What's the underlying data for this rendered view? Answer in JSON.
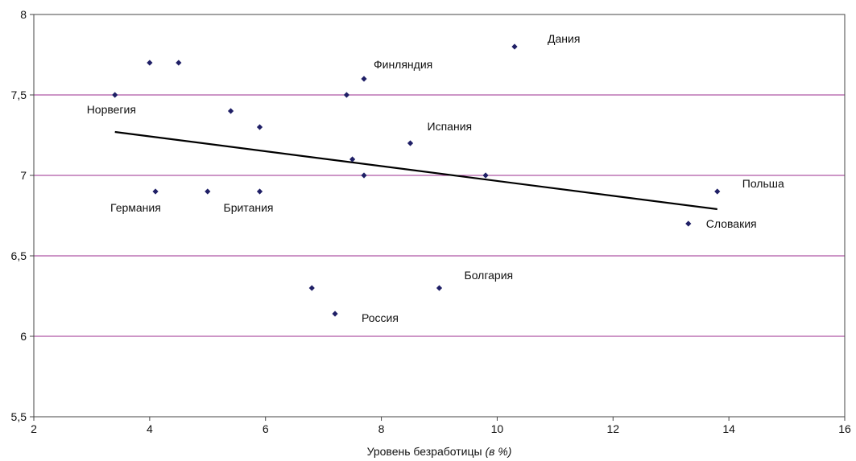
{
  "chart_data": {
    "type": "scatter",
    "xlabel": "Уровень безработицы",
    "xlabel_suffix": "(в %)",
    "xlim": [
      2,
      16
    ],
    "ylim": [
      5.5,
      8
    ],
    "x_ticks": [
      "2",
      "4",
      "6",
      "8",
      "10",
      "12",
      "14",
      "16"
    ],
    "y_ticks": [
      "5,5",
      "6",
      "6,5",
      "7",
      "7,5",
      "8"
    ],
    "gridlines": "horizontal",
    "colors": {
      "marker": "#1f1f66",
      "grid": "#9b2d8f",
      "trend": "#000000",
      "axis": "#444444"
    },
    "points": [
      {
        "x": 3.4,
        "y": 7.5,
        "label": "Норвегия"
      },
      {
        "x": 4.0,
        "y": 7.7,
        "label": ""
      },
      {
        "x": 4.5,
        "y": 7.7,
        "label": ""
      },
      {
        "x": 4.1,
        "y": 6.9,
        "label": "Германия"
      },
      {
        "x": 5.0,
        "y": 6.9,
        "label": ""
      },
      {
        "x": 5.4,
        "y": 7.4,
        "label": ""
      },
      {
        "x": 5.9,
        "y": 7.3,
        "label": ""
      },
      {
        "x": 5.9,
        "y": 6.9,
        "label": "Британия"
      },
      {
        "x": 6.8,
        "y": 6.3,
        "label": ""
      },
      {
        "x": 7.2,
        "y": 6.14,
        "label": "Россия"
      },
      {
        "x": 7.4,
        "y": 7.5,
        "label": ""
      },
      {
        "x": 7.5,
        "y": 7.1,
        "label": ""
      },
      {
        "x": 7.7,
        "y": 7.6,
        "label": "Финляндия"
      },
      {
        "x": 7.7,
        "y": 7.0,
        "label": ""
      },
      {
        "x": 8.5,
        "y": 7.2,
        "label": "Испания"
      },
      {
        "x": 9.0,
        "y": 6.3,
        "label": "Болгария"
      },
      {
        "x": 9.8,
        "y": 7.0,
        "label": ""
      },
      {
        "x": 10.3,
        "y": 7.8,
        "label": "Дания"
      },
      {
        "x": 13.3,
        "y": 6.7,
        "label": "Словакия"
      },
      {
        "x": 13.8,
        "y": 6.9,
        "label": "Польша"
      }
    ],
    "trendline": {
      "x": [
        3.4,
        13.8
      ],
      "y": [
        7.27,
        6.79
      ]
    }
  }
}
